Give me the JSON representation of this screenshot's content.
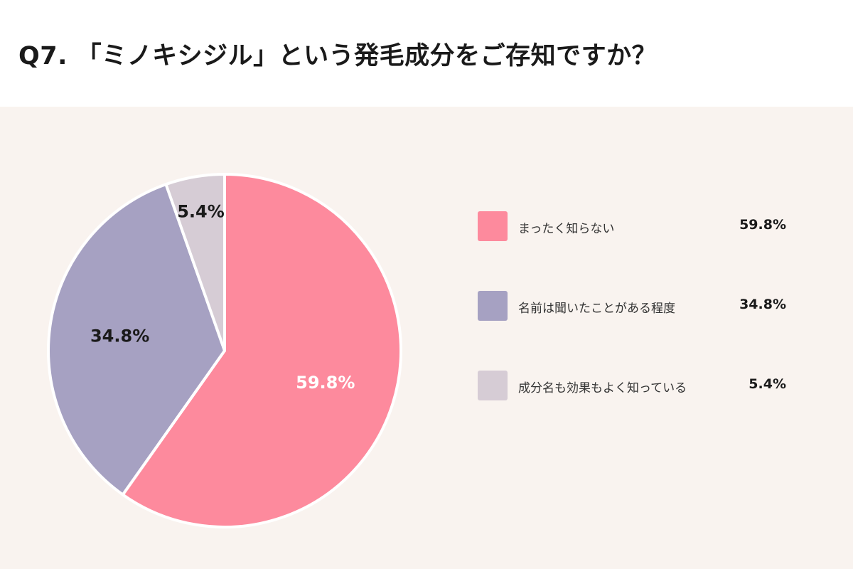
{
  "title": "Q7. 「ミノキシジル」という発毛成分をご存知ですか？",
  "chart_data": {
    "type": "pie",
    "slices": [
      {
        "label": "まったく知らない",
        "value": 59.8,
        "display": "59.8%",
        "color": "#fd8a9d",
        "text_color": "#ffffff"
      },
      {
        "label": "名前は聞いたことがある程度",
        "value": 34.8,
        "display": "34.8%",
        "color": "#a6a1c2",
        "text_color": "#1a1a1a"
      },
      {
        "label": "成分名も効果もよく知っている",
        "value": 5.4,
        "display": "5.4%",
        "color": "#d6ccd5",
        "text_color": "#1a1a1a"
      }
    ],
    "legend_position": "right"
  }
}
